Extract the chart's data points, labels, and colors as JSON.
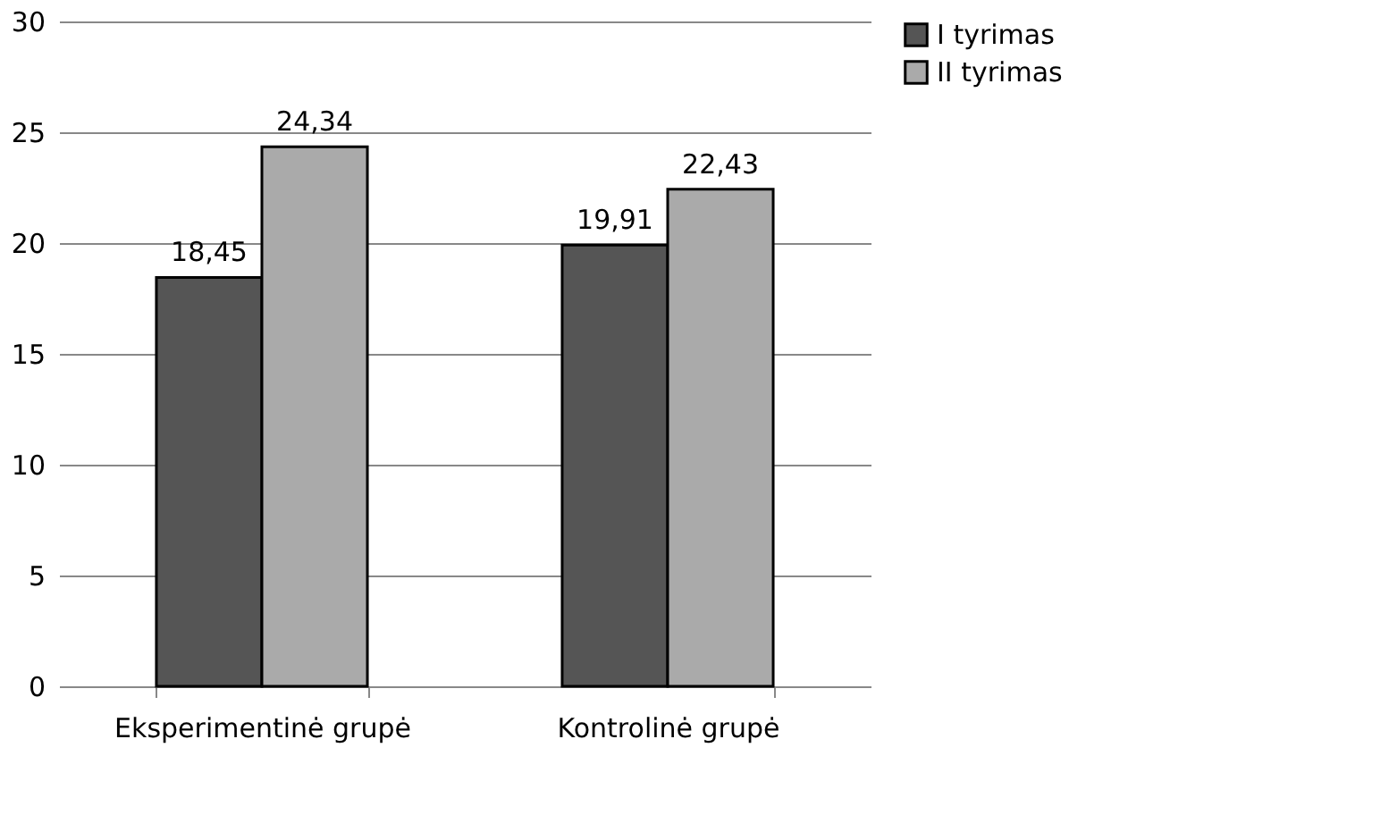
{
  "chart_data": {
    "type": "bar",
    "categories": [
      "Eksperimentinė grupė",
      "Kontrolinė grupė"
    ],
    "series": [
      {
        "name": "I tyrimas",
        "color": "#555555",
        "values": [
          18.45,
          19.91
        ],
        "value_labels": [
          "18,45",
          "19,91"
        ]
      },
      {
        "name": "II tyrimas",
        "color": "#aaaaaa",
        "values": [
          24.34,
          22.43
        ],
        "value_labels": [
          "24,34",
          "22,43"
        ]
      }
    ],
    "ylim": [
      0,
      30
    ],
    "yticks": [
      0,
      5,
      10,
      15,
      20,
      25,
      30
    ],
    "grid": "y",
    "legend": "right"
  }
}
